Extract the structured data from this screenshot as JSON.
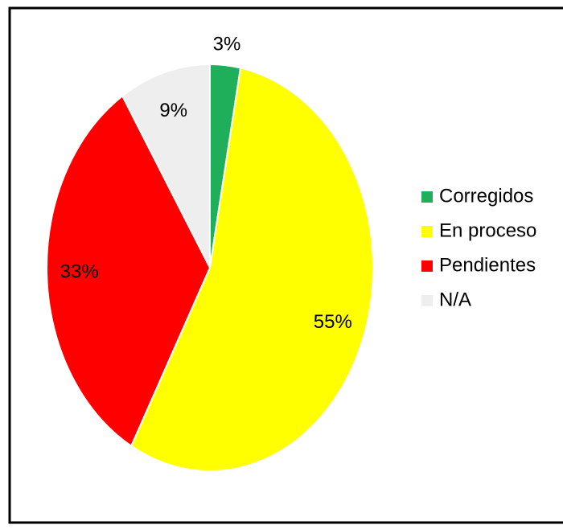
{
  "chart_data": {
    "type": "pie",
    "categories": [
      "Corregidos",
      "En proceso",
      "Pendientes",
      "N/A"
    ],
    "values": [
      3,
      55,
      33,
      9
    ],
    "value_labels": [
      "3%",
      "55%",
      "33%",
      "9%"
    ],
    "colors": [
      "#1fae5a",
      "#ffff00",
      "#ff0000",
      "#eeeeee"
    ],
    "legend": "right"
  }
}
